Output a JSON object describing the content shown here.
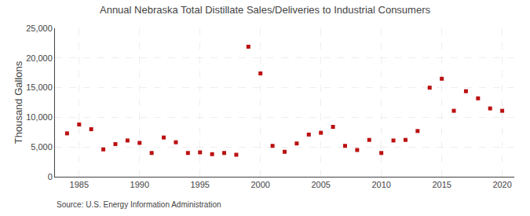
{
  "chart_data": {
    "type": "scatter",
    "title": "Annual Nebraska Total Distillate Sales/Deliveries to Industrial Consumers",
    "ylabel": "Thousand Gallons",
    "annotations": [
      "Source: U.S. Energy Information Administration"
    ],
    "x": [
      1984,
      1985,
      1986,
      1987,
      1988,
      1989,
      1990,
      1991,
      1992,
      1993,
      1994,
      1995,
      1996,
      1997,
      1998,
      1999,
      2000,
      2001,
      2002,
      2003,
      2004,
      2005,
      2006,
      2007,
      2008,
      2009,
      2010,
      2011,
      2012,
      2013,
      2014,
      2015,
      2016,
      2017,
      2018,
      2019,
      2020
    ],
    "values": [
      7300,
      8800,
      8000,
      4600,
      5500,
      6100,
      5700,
      4000,
      6600,
      5800,
      4000,
      4100,
      3800,
      4000,
      3700,
      21900,
      17400,
      5200,
      4200,
      5600,
      7100,
      7400,
      8400,
      5200,
      4500,
      6200,
      4000,
      6100,
      6200,
      7700,
      15000,
      16500,
      11100,
      14400,
      13200,
      11500,
      11100
    ],
    "color": "#bb1111",
    "marker": "square",
    "xlim": [
      1983,
      2021
    ],
    "xticks": [
      1985,
      1990,
      1995,
      2000,
      2005,
      2010,
      2015,
      2020
    ],
    "ylim": [
      0,
      25000
    ],
    "yticks": [
      0,
      {
        "value": 5000,
        "label": "5,000"
      },
      {
        "value": 10000,
        "label": "10,000"
      },
      {
        "value": 15000,
        "label": "15,000"
      },
      {
        "value": 20000,
        "label": "20,000"
      },
      {
        "value": 25000,
        "label": "25,000"
      }
    ],
    "grid": true
  }
}
